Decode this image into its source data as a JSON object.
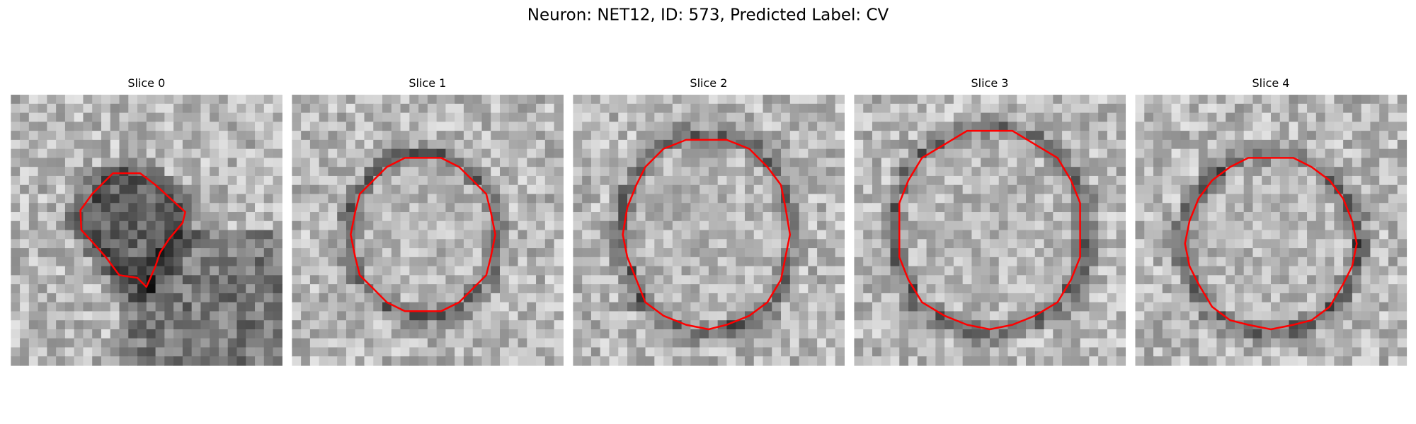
{
  "title": "Neuron: NET12, ID: 573, Predicted Label: CV",
  "slices": [
    "Slice 0",
    "Slice 1",
    "Slice 2",
    "Slice 3",
    "Slice 4"
  ]
}
